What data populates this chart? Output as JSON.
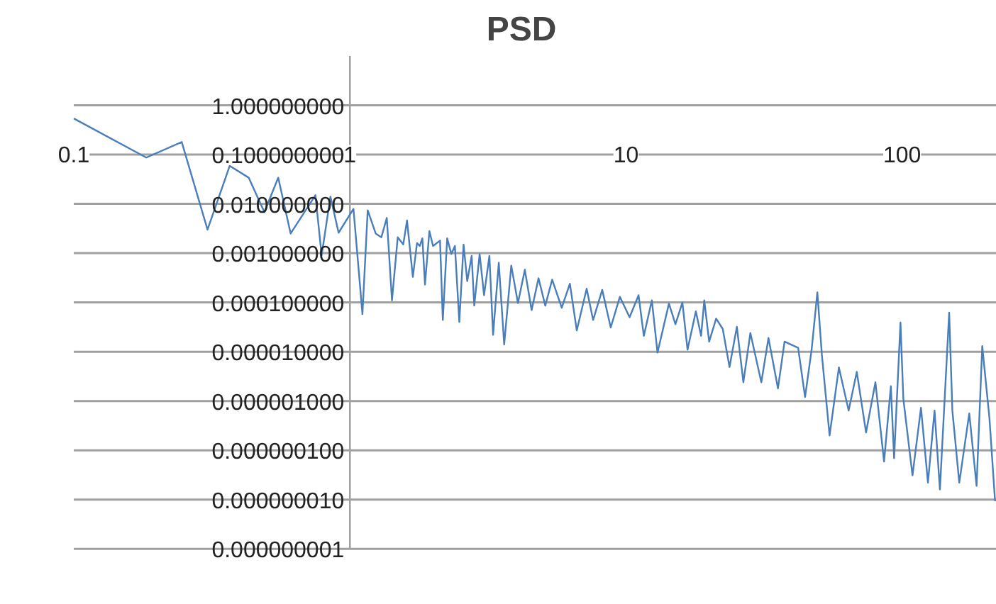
{
  "chart_data": {
    "type": "line",
    "title": "PSD",
    "x": [
      0.1,
      0.183,
      0.246,
      0.305,
      0.367,
      0.43,
      0.49,
      0.55,
      0.61,
      0.75,
      0.79,
      0.85,
      0.91,
      1.03,
      1.11,
      1.16,
      1.24,
      1.3,
      1.36,
      1.42,
      1.49,
      1.56,
      1.61,
      1.69,
      1.75,
      1.79,
      1.83,
      1.87,
      1.94,
      2.0,
      2.12,
      2.17,
      2.25,
      2.33,
      2.4,
      2.49,
      2.58,
      2.66,
      2.76,
      2.82,
      2.95,
      3.06,
      3.2,
      3.3,
      3.46,
      3.62,
      3.84,
      4.06,
      4.3,
      4.55,
      4.82,
      5.1,
      5.4,
      5.85,
      6.26,
      6.63,
      7.2,
      7.6,
      8.2,
      8.8,
      9.5,
      10.3,
      11.1,
      11.6,
      12.4,
      13.0,
      14.3,
      15.1,
      16.0,
      16.7,
      17.9,
      18.7,
      19.2,
      20.0,
      21.2,
      22.4,
      23.7,
      25.2,
      26.6,
      28.2,
      30.9,
      32.8,
      35.5,
      37.5,
      42,
      44.5,
      47,
      49.3,
      51.2,
      54.6,
      59,
      64,
      68.5,
      74,
      80,
      86,
      91,
      93.5,
      98.6,
      101,
      109,
      117,
      124,
      131,
      137,
      148,
      152,
      161,
      175,
      186,
      195,
      207,
      217
    ],
    "series": [
      {
        "color": "#4a7ebb",
        "values": [
          0.54,
          0.087,
          0.18,
          0.003,
          0.059,
          0.034,
          0.0068,
          0.034,
          0.0025,
          0.015,
          0.0009,
          0.014,
          0.0026,
          0.0079,
          5.8e-05,
          0.0074,
          0.0025,
          0.0021,
          0.0052,
          0.00011,
          0.0021,
          0.0015,
          0.0046,
          0.00033,
          0.0016,
          0.0014,
          0.002,
          0.00023,
          0.0028,
          0.0014,
          0.0018,
          4.4e-05,
          0.002,
          0.00096,
          0.0014,
          4e-05,
          0.0015,
          0.00027,
          0.00088,
          8.6e-05,
          0.00096,
          0.00014,
          0.00088,
          2.2e-05,
          0.00064,
          1.4e-05,
          0.00056,
          9.7e-05,
          0.00046,
          7e-05,
          0.00031,
          8.6e-05,
          0.00029,
          7.8e-05,
          0.00024,
          2.7e-05,
          0.00019,
          4.4e-05,
          0.00018,
          3.1e-05,
          0.00013,
          5e-05,
          0.00014,
          2.1e-05,
          0.00011,
          9.6e-06,
          9.5e-05,
          3.6e-05,
          0.0001,
          1.1e-05,
          6.6e-05,
          2.1e-05,
          0.00011,
          1.6e-05,
          4.7e-05,
          2.9e-05,
          4.9e-06,
          3.2e-05,
          2.4e-06,
          2.4e-05,
          2.4e-06,
          1.9e-05,
          1.8e-06,
          1.6e-05,
          1.2e-05,
          1.2e-06,
          1.1e-05,
          0.00016,
          8.6e-06,
          2e-07,
          4.8e-06,
          6.4e-07,
          3.9e-06,
          2.3e-07,
          2.4e-06,
          5.9e-08,
          2e-06,
          6.9e-08,
          3.9e-05,
          1.1e-06,
          3.1e-08,
          7.3e-07,
          2.2e-08,
          6.4e-07,
          1.6e-08,
          6.2e-05,
          6.4e-07,
          2.2e-08,
          5.6e-07,
          1.9e-08,
          1.3e-05,
          4.6e-07,
          9.3e-09
        ]
      }
    ],
    "log": "xy",
    "xlim": [
      0.1,
      220
    ],
    "ylim": [
      1e-09,
      10
    ],
    "xticks": [
      0.1,
      1,
      10,
      100
    ],
    "yticks": [
      {
        "value": 1,
        "label": "1.000000000"
      },
      {
        "value": 0.1,
        "label": "0.100000000"
      },
      {
        "value": 0.01,
        "label": "0.010000000"
      },
      {
        "value": 0.001,
        "label": "0.001000000"
      },
      {
        "value": 0.0001,
        "label": "0.000100000"
      },
      {
        "value": 1e-05,
        "label": "0.000010000"
      },
      {
        "value": 1e-06,
        "label": "0.000001000"
      },
      {
        "value": 1e-07,
        "label": "0.000000100"
      },
      {
        "value": 1e-08,
        "label": "0.000000010"
      },
      {
        "value": 1e-09,
        "label": "0.000000001"
      }
    ],
    "grid": "y",
    "marker": "none",
    "line_style": "solid"
  }
}
